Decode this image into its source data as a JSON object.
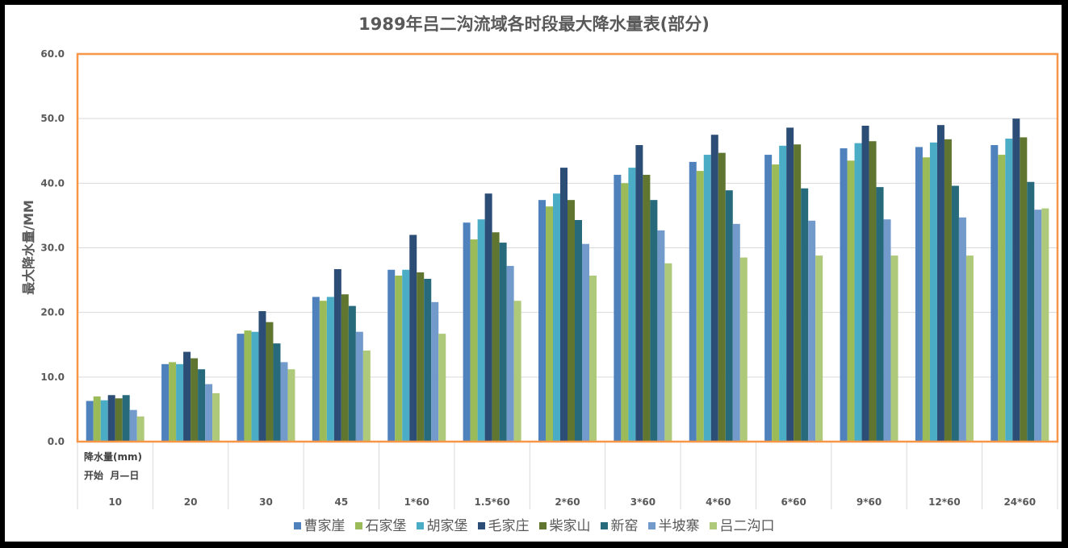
{
  "chart_data": {
    "type": "bar",
    "title": "1989年吕二沟流域各时段最大降水量表(部分)",
    "ylabel": "最大降水量/MM",
    "xlabel": "",
    "table_row_labels": [
      "降水量(mm)",
      "开始  月—日"
    ],
    "ylim": [
      0,
      60
    ],
    "yticks": [
      "0.0",
      "10.0",
      "20.0",
      "30.0",
      "40.0",
      "50.0",
      "60.0"
    ],
    "grid": true,
    "legend_position": "bottom",
    "categories": [
      "10",
      "20",
      "30",
      "45",
      "1*60",
      "1.5*60",
      "2*60",
      "3*60",
      "4*60",
      "6*60",
      "9*60",
      "12*60",
      "24*60"
    ],
    "series": [
      {
        "name": "曹家崖",
        "color": "#4f81bd",
        "values": [
          6.3,
          12.0,
          16.7,
          22.4,
          26.6,
          33.9,
          37.4,
          41.3,
          43.3,
          44.4,
          45.4,
          45.6,
          45.9
        ]
      },
      {
        "name": "石家堡",
        "color": "#9bbb59",
        "values": [
          7.0,
          12.3,
          17.2,
          21.8,
          25.7,
          31.3,
          36.4,
          40.0,
          41.9,
          42.9,
          43.5,
          44.0,
          44.4
        ]
      },
      {
        "name": "胡家堡",
        "color": "#4bacc6",
        "values": [
          6.4,
          12.0,
          17.0,
          22.4,
          26.6,
          34.4,
          38.4,
          42.4,
          44.4,
          45.8,
          46.2,
          46.3,
          46.9
        ]
      },
      {
        "name": "毛家庄",
        "color": "#2c4d75",
        "values": [
          7.2,
          13.9,
          20.2,
          26.7,
          32.0,
          38.4,
          42.4,
          45.9,
          47.5,
          48.6,
          48.9,
          49.0,
          50.0
        ]
      },
      {
        "name": "柴家山",
        "color": "#5f7530",
        "values": [
          6.7,
          12.9,
          18.5,
          22.8,
          26.2,
          32.4,
          37.4,
          41.3,
          44.7,
          46.0,
          46.5,
          46.8,
          47.1
        ]
      },
      {
        "name": "新窑",
        "color": "#276a7c",
        "values": [
          7.2,
          11.2,
          15.2,
          21.0,
          25.2,
          30.8,
          34.3,
          37.4,
          38.9,
          39.2,
          39.4,
          39.6,
          40.2
        ]
      },
      {
        "name": "半坡寨",
        "color": "#729aca",
        "values": [
          4.9,
          8.9,
          12.3,
          17.0,
          21.6,
          27.2,
          30.6,
          32.7,
          33.7,
          34.2,
          34.4,
          34.7,
          35.9
        ]
      },
      {
        "name": "吕二沟口",
        "color": "#afc97a",
        "values": [
          3.9,
          7.5,
          11.2,
          14.1,
          16.7,
          21.8,
          25.7,
          27.6,
          28.5,
          28.8,
          28.8,
          28.8,
          36.1
        ]
      }
    ],
    "plot_border_color": "#f79646"
  }
}
